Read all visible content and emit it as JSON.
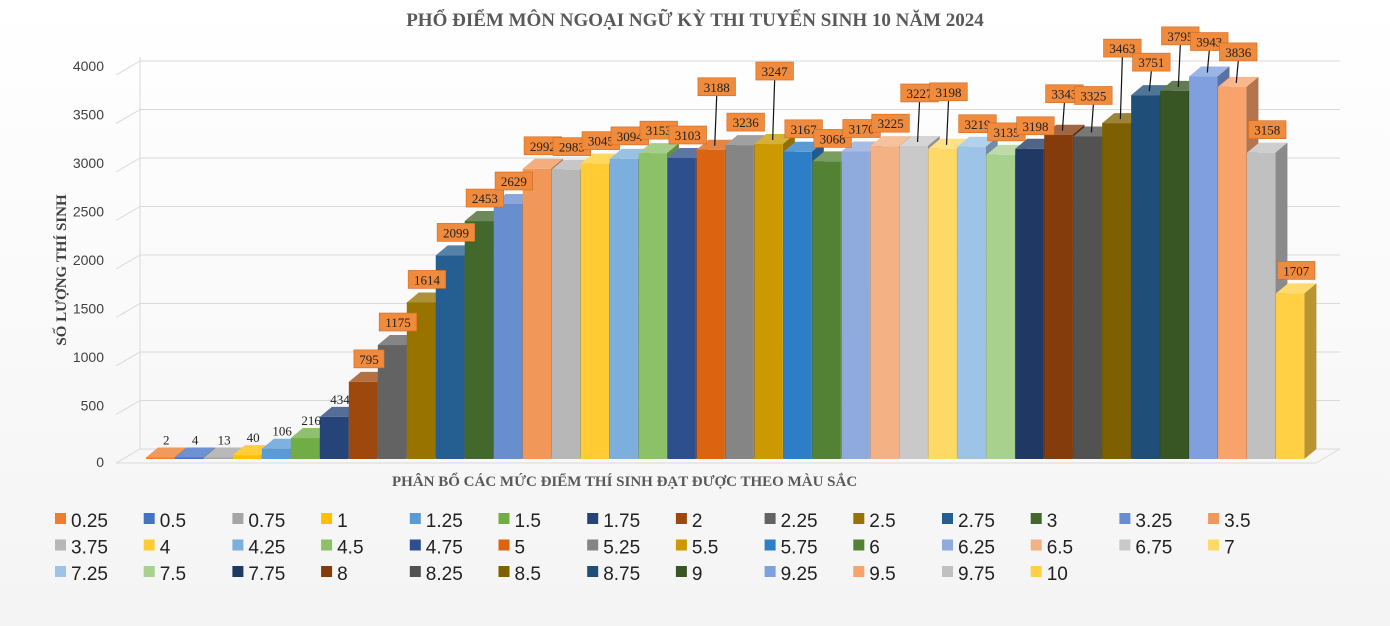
{
  "chart_data": {
    "type": "bar",
    "title": "PHỔ ĐIỂM MÔN NGOẠI NGỮ KỲ THI TUYỂN SINH 10 NĂM 2024",
    "xlabel": "PHÂN BỔ CÁC MỨC ĐIỂM THÍ SINH ĐẠT ĐƯỢC THEO MÀU SẮC",
    "ylabel": "SỐ LƯỢNG THÍ SINH",
    "ylim": [
      0,
      4000
    ],
    "yticks": [
      "0",
      "500",
      "1000",
      "1500",
      "2000",
      "2500",
      "3000",
      "3500",
      "4000"
    ],
    "categories": [
      "0.25",
      "0.5",
      "0.75",
      "1",
      "1.25",
      "1.5",
      "1.75",
      "2",
      "2.25",
      "2.5",
      "2.75",
      "3",
      "3.25",
      "3.5",
      "3.75",
      "4",
      "4.25",
      "4.5",
      "4.75",
      "5",
      "5.25",
      "5.5",
      "5.75",
      "6",
      "6.25",
      "6.5",
      "6.75",
      "7",
      "7.25",
      "7.5",
      "7.75",
      "8",
      "8.25",
      "8.5",
      "8.75",
      "9",
      "9.25",
      "9.5",
      "9.75",
      "10"
    ],
    "values": [
      2,
      4,
      13,
      40,
      106,
      216,
      434,
      795,
      1175,
      1614,
      2099,
      2453,
      2629,
      2992,
      2983,
      3045,
      3094,
      3153,
      3103,
      3188,
      3236,
      3247,
      3167,
      3068,
      3170,
      3225,
      3227,
      3198,
      3219,
      3135,
      3198,
      3343,
      3325,
      3463,
      3751,
      3795,
      3943,
      3836,
      3158,
      1707
    ],
    "colors": [
      "#ED7D31",
      "#4472C4",
      "#A5A5A5",
      "#FFC000",
      "#5B9BD5",
      "#70AD47",
      "#264478",
      "#9E480E",
      "#636363",
      "#997300",
      "#255E91",
      "#43682B",
      "#698ED0",
      "#F1975A",
      "#B7B7B7",
      "#FFCD33",
      "#7CAFDD",
      "#8CC168",
      "#2E4F8E",
      "#DB6410",
      "#858585",
      "#CC9A00",
      "#2E7DC7",
      "#548235",
      "#8FAADC",
      "#F4B183",
      "#C9C9C9",
      "#FFD966",
      "#9DC3E6",
      "#A9D18E",
      "#1F3864",
      "#843C0C",
      "#525252",
      "#7F6000",
      "#1F4E79",
      "#375623",
      "#7F9FDF",
      "#F8A36B",
      "#C0C0C0",
      "#FFCF44"
    ],
    "legend": [
      "0.25",
      "0.5",
      "0.75",
      "1",
      "1.25",
      "1.5",
      "1.75",
      "2",
      "2.25",
      "2.5",
      "2.75",
      "3",
      "3.25",
      "3.5",
      "3.75",
      "4",
      "4.25",
      "4.5",
      "4.75",
      "5",
      "5.25",
      "5.5",
      "5.75",
      "6",
      "6.25",
      "6.5",
      "6.75",
      "7",
      "7.25",
      "7.5",
      "7.75",
      "8",
      "8.25",
      "8.5",
      "8.75",
      "9",
      "9.25",
      "9.5",
      "9.75",
      "10"
    ],
    "legend_position": "bottom",
    "grid": true,
    "label_style": "orange-callout"
  }
}
